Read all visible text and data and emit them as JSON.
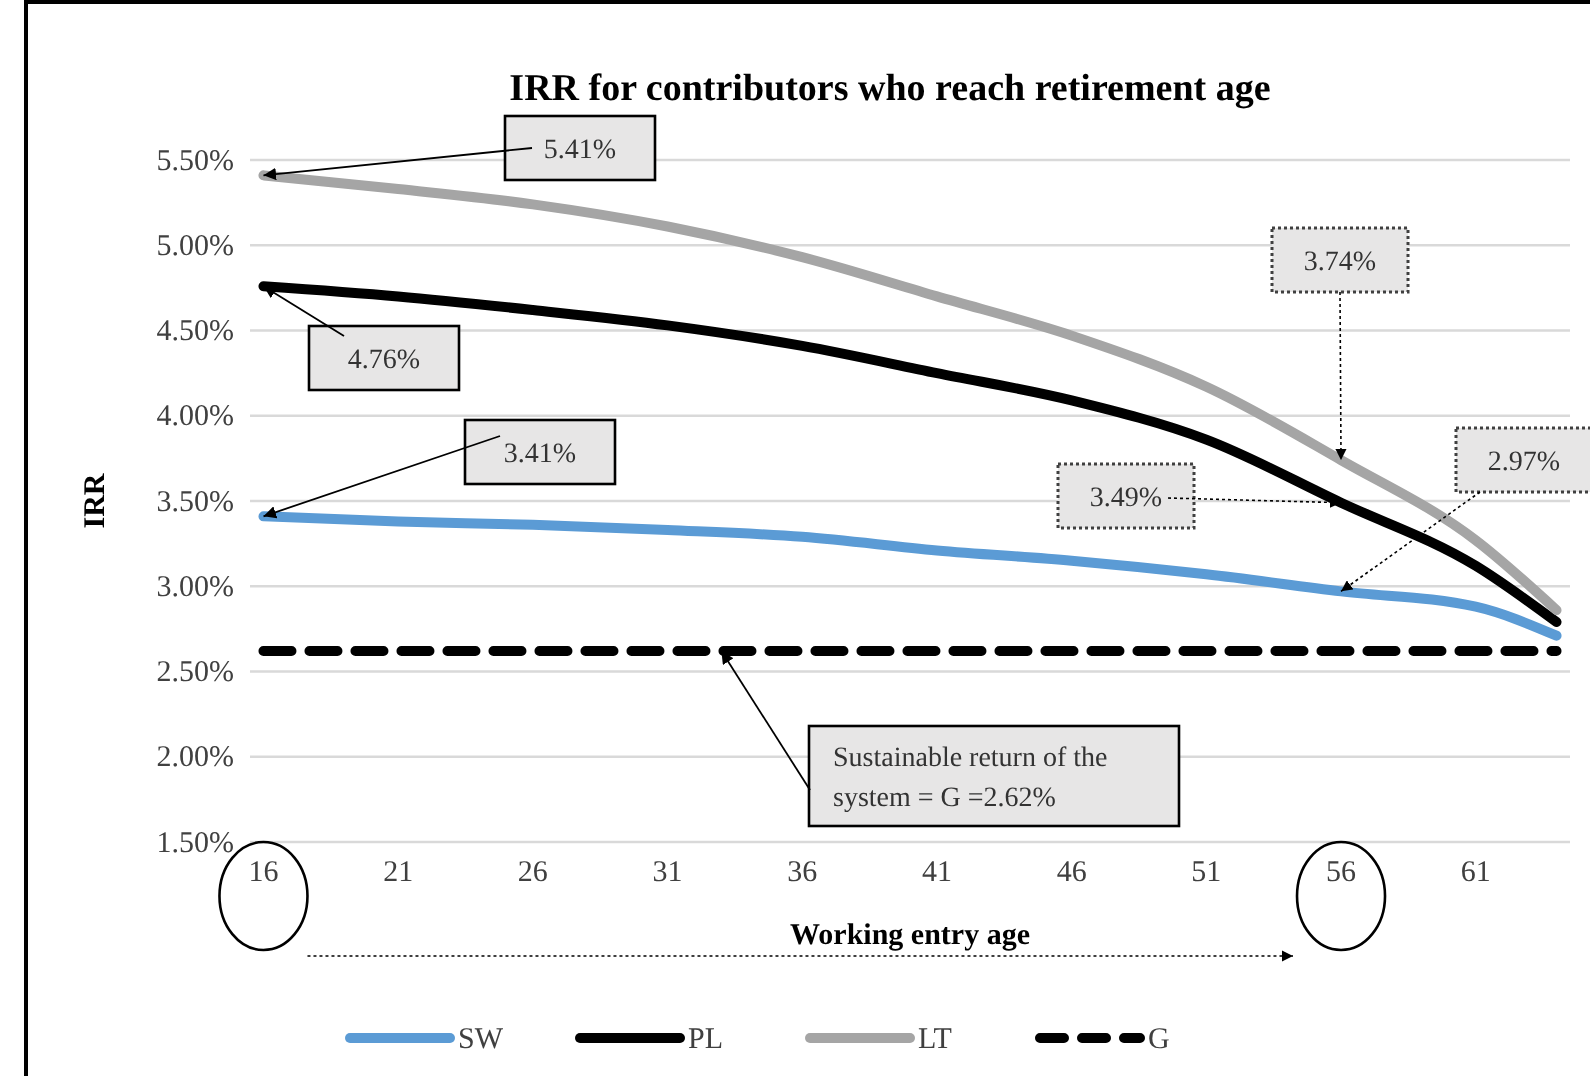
{
  "chart_data": {
    "type": "line",
    "title": "IRR  for contributors who reach retirement age",
    "xlabel": "Working entry age",
    "ylabel": "IRR",
    "x": [
      16,
      21,
      26,
      31,
      36,
      41,
      46,
      51,
      56,
      61,
      64
    ],
    "xlim": [
      15.5,
      64.5
    ],
    "xticks": [
      16,
      21,
      26,
      31,
      36,
      41,
      46,
      51,
      56,
      61
    ],
    "ylim": [
      1.5,
      5.5
    ],
    "yticks": [
      {
        "value": 1.5,
        "label": "1.50%"
      },
      {
        "value": 2,
        "label": "2.00%"
      },
      {
        "value": 2.5,
        "label": "2.50%"
      },
      {
        "value": 3,
        "label": "3.00%"
      },
      {
        "value": 3.5,
        "label": "3.50%"
      },
      {
        "value": 4,
        "label": "4.00%"
      },
      {
        "value": 4.5,
        "label": "4.50%"
      },
      {
        "value": 5,
        "label": "5.00%"
      },
      {
        "value": 5.5,
        "label": "5.50%"
      }
    ],
    "grid": "y",
    "legend": "bottom",
    "marker": "none",
    "series": [
      {
        "name": "SW",
        "color": "#5b9bd5",
        "values": [
          3.41,
          3.38,
          3.36,
          3.33,
          3.29,
          3.21,
          3.15,
          3.07,
          2.97,
          2.88,
          2.71
        ]
      },
      {
        "name": "PL",
        "color": "#000000",
        "values": [
          4.76,
          4.7,
          4.62,
          4.53,
          4.41,
          4.25,
          4.09,
          3.86,
          3.49,
          3.12,
          2.79
        ]
      },
      {
        "name": "LT",
        "color": "#a5a5a5",
        "values": [
          5.41,
          5.33,
          5.24,
          5.11,
          4.93,
          4.7,
          4.47,
          4.17,
          3.74,
          3.27,
          2.86
        ]
      },
      {
        "name": "G",
        "color": "#000000",
        "line_style": "dashed",
        "values": [
          2.62,
          2.62,
          2.62,
          2.62,
          2.62,
          2.62,
          2.62,
          2.62,
          2.62,
          2.62,
          2.62
        ]
      }
    ],
    "annotations": [
      {
        "text": "5.41%",
        "x": 16,
        "y": 5.41
      },
      {
        "text": "4.76%",
        "x": 16,
        "y": 4.76
      },
      {
        "text": "3.41%",
        "x": 16,
        "y": 3.41
      },
      {
        "text": "3.74%",
        "x": 56,
        "y": 3.74
      },
      {
        "text": "3.49%",
        "x": 56,
        "y": 3.49
      },
      {
        "text": "2.97%",
        "x": 56,
        "y": 2.97
      },
      {
        "text": "Sustainable return of the system = G =2.62%",
        "x": 33,
        "y": 2.62
      }
    ]
  }
}
